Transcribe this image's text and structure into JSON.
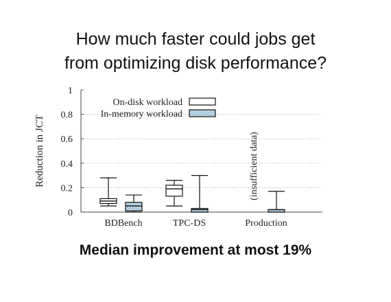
{
  "slide": {
    "title_line1": "How much faster could jobs get",
    "title_line2": "from optimizing disk performance?",
    "footer": "Median improvement at most 19%"
  },
  "chart_data": {
    "type": "boxplot",
    "ylabel": "Reduction in JCT",
    "ylim": [
      0,
      1
    ],
    "yticks": [
      "0",
      "0.2",
      "0.4",
      "0.6",
      "0.8",
      "1"
    ],
    "categories": [
      "BDBench",
      "TPC-DS",
      "Production"
    ],
    "grid": "horizontal dotted",
    "legend_position": "top-left",
    "series": [
      {
        "name": "On-disk workload",
        "fill": "#ffffff",
        "boxes": [
          {
            "category": "BDBench",
            "whisker_low": 0.05,
            "q1": 0.07,
            "median": 0.09,
            "q3": 0.11,
            "whisker_high": 0.28
          },
          {
            "category": "TPC-DS",
            "whisker_low": 0.05,
            "q1": 0.13,
            "median": 0.19,
            "q3": 0.22,
            "whisker_high": 0.26
          },
          {
            "category": "Production",
            "missing": true
          }
        ]
      },
      {
        "name": "In-memory workload",
        "fill": "#cfe3ef",
        "boxes": [
          {
            "category": "BDBench",
            "whisker_low": 0.0,
            "q1": 0.01,
            "median": 0.05,
            "q3": 0.08,
            "whisker_high": 0.14
          },
          {
            "category": "TPC-DS",
            "whisker_low": 0.0,
            "q1": 0.0,
            "median": 0.02,
            "q3": 0.03,
            "whisker_high": 0.3
          },
          {
            "category": "Production",
            "whisker_low": 0.0,
            "q1": 0.0,
            "median": 0.02,
            "q3": 0.02,
            "whisker_high": 0.17
          }
        ]
      }
    ],
    "annotations": [
      {
        "category": "Production",
        "text": "(insufficient data)"
      }
    ]
  }
}
